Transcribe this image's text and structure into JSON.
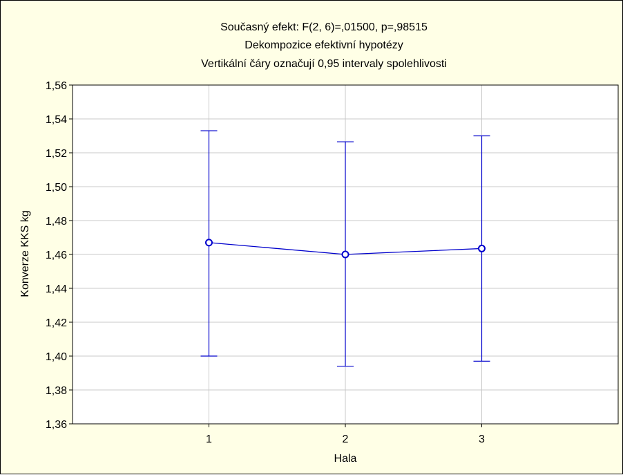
{
  "chart_data": {
    "type": "line",
    "title_lines": [
      "Současný efekt: F(2, 6)=,01500, p=,98515",
      "Dekompozice efektivní hypotézy",
      "Vertikální čáry označují 0,95 intervaly spolehlivosti"
    ],
    "xlabel": "Hala",
    "ylabel": "Konverze KKS kg",
    "categories": [
      "1",
      "2",
      "3"
    ],
    "xlim": [
      0,
      4
    ],
    "ylim": [
      1.36,
      1.56
    ],
    "yticks": [
      "1,36",
      "1,38",
      "1,40",
      "1,42",
      "1,44",
      "1,46",
      "1,48",
      "1,50",
      "1,52",
      "1,54",
      "1,56"
    ],
    "ytick_values": [
      1.36,
      1.38,
      1.4,
      1.42,
      1.44,
      1.46,
      1.48,
      1.5,
      1.52,
      1.54,
      1.56
    ],
    "series": [
      {
        "values": [
          1.467,
          1.46,
          1.4635
        ],
        "ci_lower": [
          1.4,
          1.394,
          1.397
        ],
        "ci_upper": [
          1.533,
          1.5265,
          1.53
        ]
      }
    ],
    "grid": true,
    "colors": {
      "series": "#0000cc",
      "grid": "#c8c8c8",
      "background": "#ffffe6",
      "plot_background": "#ffffff"
    }
  }
}
